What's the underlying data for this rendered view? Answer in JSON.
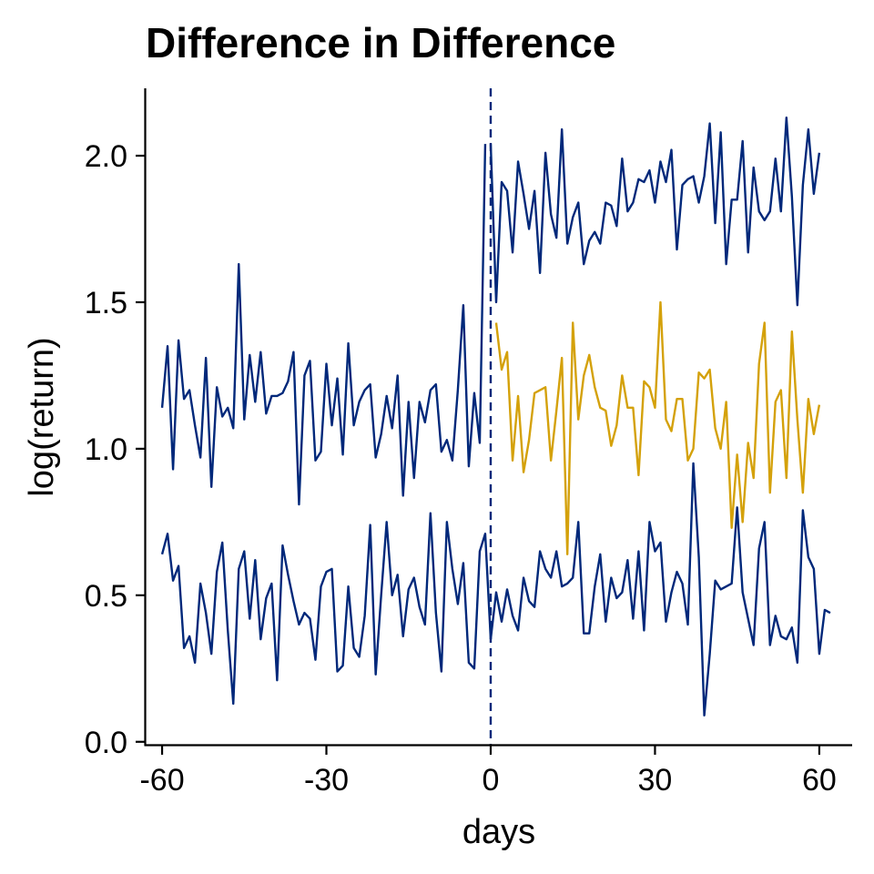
{
  "chart_data": {
    "type": "line",
    "title": "Difference in Difference",
    "xlabel": "days",
    "ylabel": "log(return)",
    "xlim": [
      -63,
      66
    ],
    "ylim": [
      -0.01,
      2.23
    ],
    "x_ticks": [
      -60,
      -30,
      0,
      30,
      60
    ],
    "x_tick_labels": [
      "-60",
      "-30",
      "0",
      "30",
      "60"
    ],
    "y_ticks": [
      0.0,
      0.5,
      1.0,
      1.5,
      2.0
    ],
    "y_tick_labels": [
      "0.0",
      "0.5",
      "1.0",
      "1.5",
      "2.0"
    ],
    "grid": false,
    "legend": "none",
    "vline": {
      "x": 0,
      "style": "dashed",
      "color": "#00287A"
    },
    "colors": {
      "navy": "#00287A",
      "gold": "#D4A10A",
      "axis": "#000000"
    },
    "series": [
      {
        "color": "#00287A",
        "x_start": -60,
        "values": [
          1.14,
          1.35,
          0.93,
          1.37,
          1.17,
          1.2,
          1.08,
          0.97,
          1.31,
          0.87,
          1.21,
          1.11,
          1.14,
          1.07,
          1.63,
          1.1,
          1.32,
          1.16,
          1.33,
          1.12,
          1.18,
          1.18,
          1.19,
          1.23,
          1.33,
          0.81,
          1.25,
          1.3,
          0.96,
          0.99,
          1.29,
          1.08,
          1.24,
          0.98,
          1.36,
          1.08,
          1.16,
          1.2,
          1.22,
          0.97,
          1.05,
          1.18,
          1.07,
          1.25,
          0.84,
          1.16,
          0.9,
          1.16,
          1.09,
          1.2,
          1.22,
          0.99,
          1.03,
          0.96,
          1.2,
          1.49,
          0.94,
          1.19,
          1.02,
          2.04
        ]
      },
      {
        "color": "#00287A",
        "x_start": 0,
        "values": [
          2.04,
          1.5,
          1.91,
          1.88,
          1.67,
          1.98,
          1.87,
          1.75,
          1.88,
          1.6,
          2.01,
          1.8,
          1.72,
          2.09,
          1.7,
          1.79,
          1.84,
          1.63,
          1.71,
          1.74,
          1.7,
          1.84,
          1.83,
          1.76,
          1.99,
          1.81,
          1.84,
          1.92,
          1.91,
          1.95,
          1.84,
          1.98,
          1.91,
          2.02,
          1.68,
          1.9,
          1.92,
          1.93,
          1.84,
          1.93,
          2.11,
          1.77,
          2.08,
          1.63,
          1.85,
          1.85,
          2.05,
          1.67,
          1.96,
          1.81,
          1.78,
          1.81,
          1.99,
          1.81,
          2.13,
          1.86,
          1.49,
          1.9,
          2.09,
          1.87,
          2.01
        ]
      },
      {
        "color": "#D4A10A",
        "x_start": 1,
        "values": [
          1.43,
          1.27,
          1.33,
          0.96,
          1.18,
          0.92,
          1.03,
          1.19,
          1.2,
          1.21,
          0.96,
          1.13,
          1.31,
          0.64,
          1.43,
          1.1,
          1.25,
          1.32,
          1.21,
          1.14,
          1.13,
          1.01,
          1.08,
          1.25,
          1.14,
          1.14,
          0.91,
          1.23,
          1.21,
          1.14,
          1.5,
          1.1,
          1.06,
          1.17,
          1.17,
          0.96,
          1.0,
          1.26,
          1.24,
          1.27,
          1.07,
          1.0,
          1.16,
          0.73,
          0.98,
          0.75,
          1.02,
          0.9,
          1.29,
          1.43,
          0.85,
          1.16,
          1.2,
          0.9,
          1.4,
          1.1,
          0.85,
          1.17,
          1.05,
          1.15
        ]
      },
      {
        "color": "#00287A",
        "x_start": -60,
        "values": [
          0.64,
          0.71,
          0.55,
          0.6,
          0.32,
          0.36,
          0.27,
          0.54,
          0.44,
          0.3,
          0.58,
          0.68,
          0.38,
          0.13,
          0.59,
          0.65,
          0.42,
          0.62,
          0.35,
          0.49,
          0.54,
          0.21,
          0.67,
          0.57,
          0.48,
          0.4,
          0.44,
          0.42,
          0.28,
          0.53,
          0.58,
          0.59,
          0.24,
          0.26,
          0.53,
          0.32,
          0.29,
          0.43,
          0.74,
          0.23,
          0.5,
          0.75,
          0.5,
          0.57,
          0.36,
          0.52,
          0.56,
          0.46,
          0.4,
          0.78,
          0.44,
          0.24,
          0.75,
          0.59,
          0.47,
          0.61,
          0.27,
          0.25,
          0.65,
          0.71,
          0.35
        ]
      },
      {
        "color": "#00287A",
        "x_start": 0,
        "values": [
          0.35,
          0.51,
          0.41,
          0.52,
          0.43,
          0.38,
          0.56,
          0.48,
          0.46,
          0.65,
          0.59,
          0.56,
          0.65,
          0.53,
          0.54,
          0.56,
          0.75,
          0.37,
          0.37,
          0.53,
          0.64,
          0.41,
          0.56,
          0.49,
          0.51,
          0.62,
          0.42,
          0.65,
          0.38,
          0.75,
          0.65,
          0.68,
          0.41,
          0.51,
          0.58,
          0.54,
          0.4,
          0.95,
          0.63,
          0.09,
          0.3,
          0.55,
          0.52,
          0.53,
          0.54,
          0.8,
          0.51,
          0.42,
          0.33,
          0.66,
          0.75,
          0.33,
          0.43,
          0.36,
          0.35,
          0.39,
          0.27,
          0.79,
          0.63,
          0.59,
          0.3,
          0.45,
          0.44
        ]
      }
    ]
  }
}
